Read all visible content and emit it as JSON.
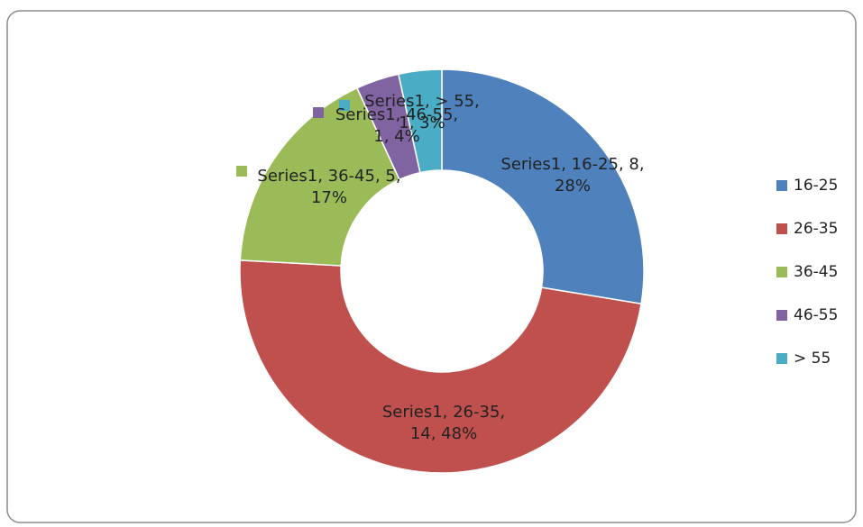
{
  "chart_data": {
    "type": "donut",
    "categories": [
      "16-25",
      "26-35",
      "36-45",
      "46-55",
      "> 55"
    ],
    "series": [
      {
        "name": "Series1",
        "values": [
          8,
          14,
          5,
          1,
          1
        ],
        "value_labels": [
          "Series1, 16-25, 8, 28%",
          "Series1, 26-35, 14, 48%",
          "Series1, 36-45, 5, 17%",
          "Series1, 46-55, 1, 4%",
          "Series1, > 55, 1, 3%"
        ]
      }
    ],
    "colors": [
      "#4f81bd",
      "#c0504d",
      "#9bbb59",
      "#8064a2",
      "#4bacc6"
    ],
    "legend": "right"
  }
}
